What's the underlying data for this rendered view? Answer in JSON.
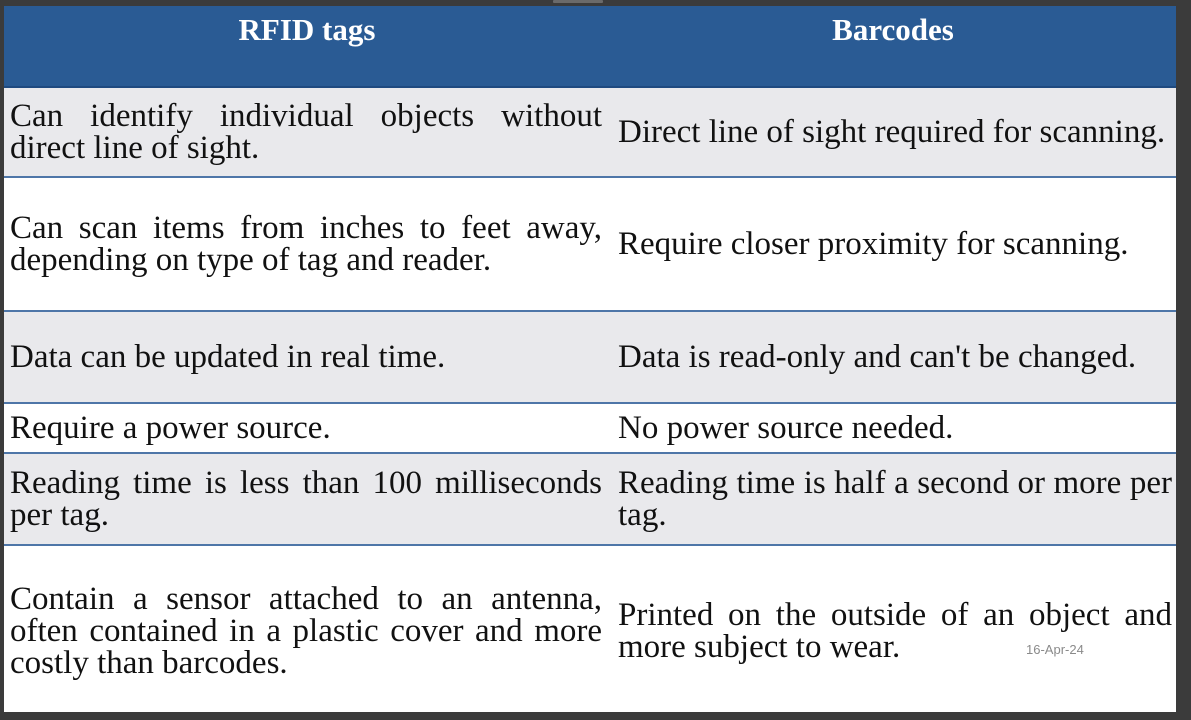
{
  "table": {
    "headers": [
      "RFID tags",
      "Barcodes"
    ],
    "rows": [
      [
        "Can identify individual objects without direct line of sight.",
        "Direct line of sight required for scanning."
      ],
      [
        "Can scan items from inches to feet away, depending on type of tag and reader.",
        "Require closer proximity for scanning."
      ],
      [
        "Data can be updated in real time.",
        "Data is read-only and can't be changed."
      ],
      [
        "Require a power source.",
        "No power source needed."
      ],
      [
        "Reading time is less than 100 milliseconds per tag.",
        "Reading time is half a second or more per tag."
      ],
      [
        "Contain a sensor attached to an antenna, often contained in a plastic cover and more costly than barcodes.",
        "Printed on the outside of an object and more subject to wear."
      ]
    ]
  },
  "footer": {
    "date": "16-Apr-24"
  },
  "colors": {
    "header_bg": "#2a5b94",
    "header_text": "#ffffff",
    "row_shade": "#e9e9ec",
    "row_border": "#4e76a8"
  }
}
